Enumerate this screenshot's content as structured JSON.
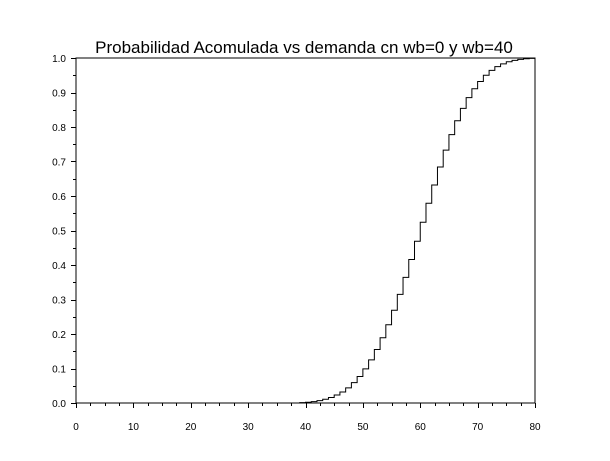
{
  "chart_data": {
    "type": "line",
    "style": "step",
    "title": "Probabilidad Acomulada vs demanda cn wb=0 y wb=40",
    "xlabel": "",
    "ylabel": "",
    "xlim": [
      0,
      80
    ],
    "ylim": [
      0,
      1.0
    ],
    "x_ticks": [
      0,
      10,
      20,
      30,
      40,
      50,
      60,
      70,
      80
    ],
    "x_tick_labels": [
      "0",
      "10",
      "20",
      "30",
      "40",
      "50",
      "60",
      "70",
      "80"
    ],
    "y_ticks": [
      0.0,
      0.1,
      0.2,
      0.3,
      0.4,
      0.5,
      0.6,
      0.7,
      0.8,
      0.9,
      1.0
    ],
    "y_tick_labels": [
      "0.0",
      "0.1",
      "0.2",
      "0.3",
      "0.4",
      "0.5",
      "0.6",
      "0.7",
      "0.8",
      "0.9",
      "1.0"
    ],
    "grid": false,
    "legend": "none",
    "line_color": "#000000",
    "series": [
      {
        "x": [
          38,
          39,
          40,
          41,
          42,
          43,
          44,
          45,
          46,
          47,
          48,
          49,
          50,
          51,
          52,
          53,
          54,
          55,
          56,
          57,
          58,
          59,
          60,
          61,
          62,
          63,
          64,
          65,
          66,
          67,
          68,
          69,
          70,
          71,
          72,
          73,
          74,
          75,
          76,
          77,
          78,
          79
        ],
        "values": [
          0.0,
          0.001,
          0.002,
          0.004,
          0.007,
          0.011,
          0.016,
          0.023,
          0.032,
          0.044,
          0.059,
          0.077,
          0.099,
          0.125,
          0.155,
          0.189,
          0.227,
          0.269,
          0.315,
          0.364,
          0.416,
          0.469,
          0.524,
          0.579,
          0.632,
          0.684,
          0.733,
          0.778,
          0.818,
          0.854,
          0.885,
          0.911,
          0.932,
          0.95,
          0.964,
          0.975,
          0.983,
          0.989,
          0.993,
          0.996,
          0.998,
          0.999
        ]
      }
    ]
  }
}
